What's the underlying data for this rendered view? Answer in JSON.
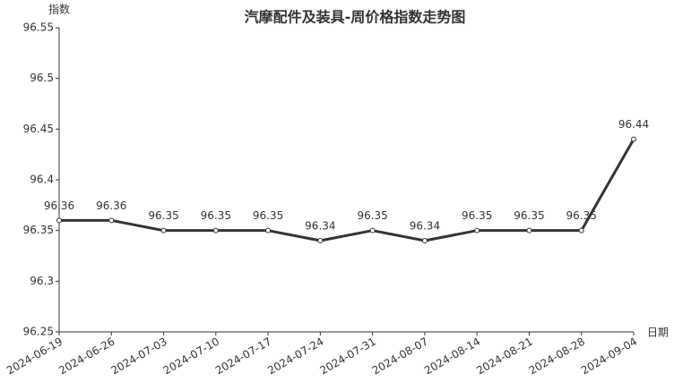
{
  "chart_data": {
    "type": "line",
    "title": "汽摩配件及装具-周价格指数走势图",
    "y_label": "指数",
    "x_label": "日期",
    "categories": [
      "2024-06-19",
      "2024-06-26",
      "2024-07-03",
      "2024-07-10",
      "2024-07-17",
      "2024-07-24",
      "2024-07-31",
      "2024-08-07",
      "2024-08-14",
      "2024-08-21",
      "2024-08-28",
      "2024-09-04"
    ],
    "values": [
      96.36,
      96.36,
      96.35,
      96.35,
      96.35,
      96.34,
      96.35,
      96.34,
      96.35,
      96.35,
      96.35,
      96.44
    ],
    "color": "#333333",
    "ylim": [
      96.25,
      96.55
    ],
    "yticks": [
      96.25,
      96.3,
      96.35,
      96.4,
      96.45,
      96.5,
      96.55
    ],
    "grid": false
  }
}
